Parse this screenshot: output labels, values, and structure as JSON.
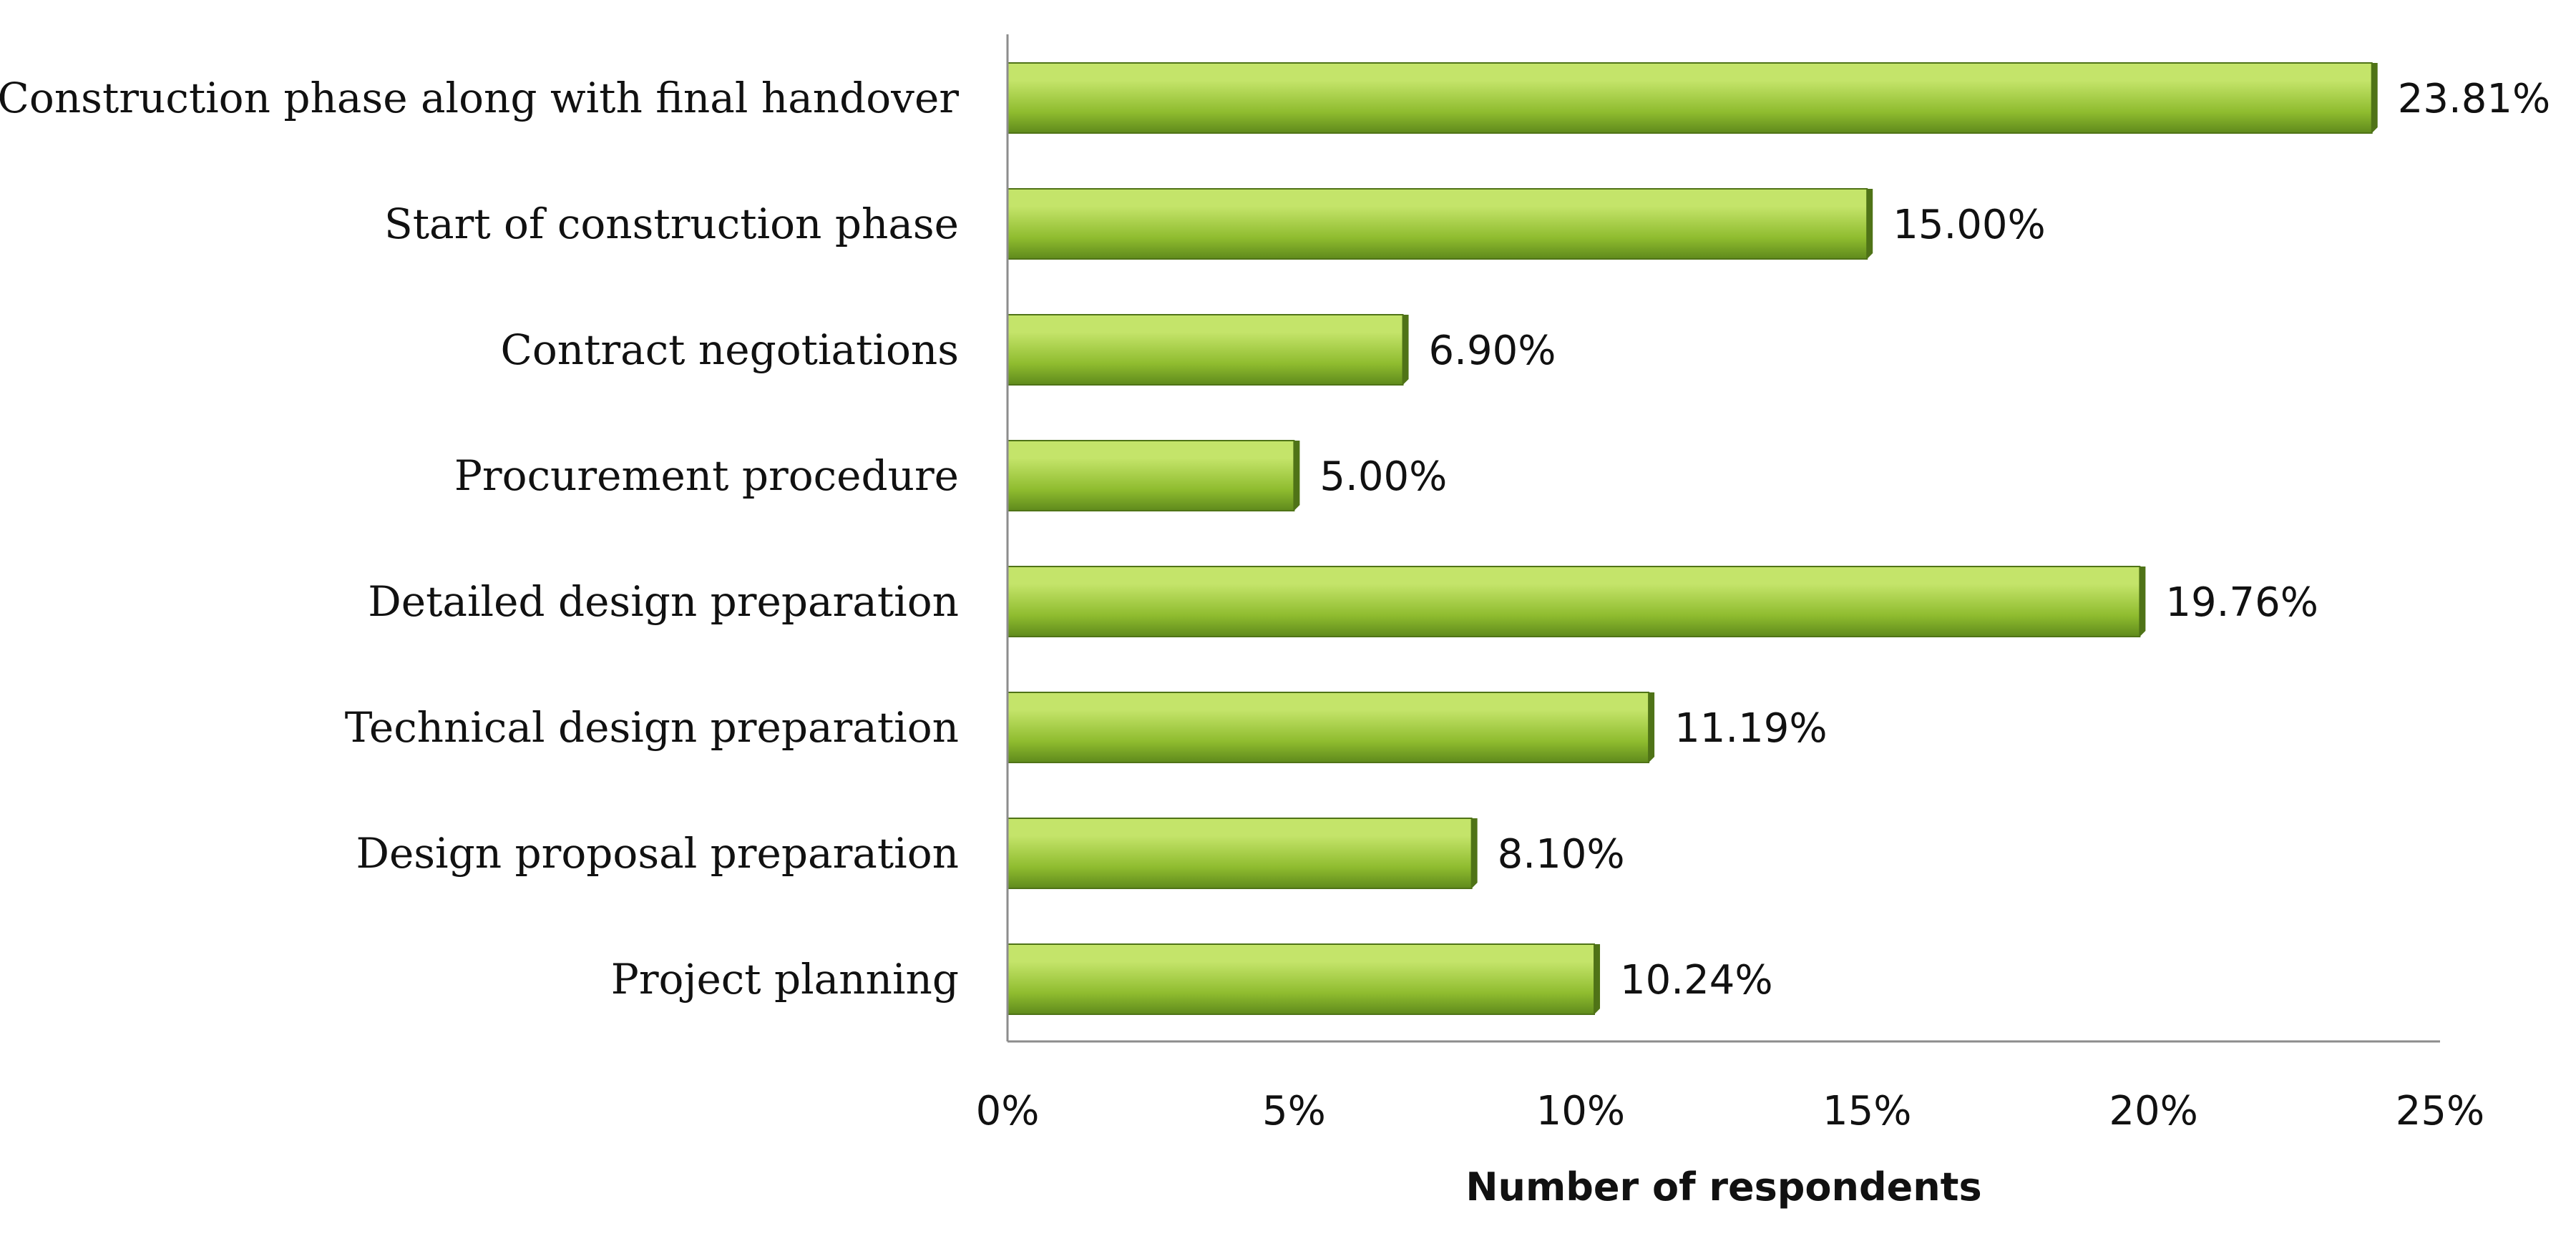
{
  "chart_data": {
    "type": "bar",
    "orientation": "horizontal",
    "title": "",
    "xlabel": "Number of respondents",
    "ylabel": "",
    "xlim": [
      0,
      25
    ],
    "x_ticks": [
      0,
      5,
      10,
      15,
      20,
      25
    ],
    "x_tick_labels": [
      "0%",
      "5%",
      "10%",
      "15%",
      "20%",
      "25%"
    ],
    "grid": false,
    "legend": "none",
    "categories": [
      "Construction phase along with final handover",
      "Start of construction phase",
      "Contract negotiations",
      "Procurement procedure",
      "Detailed design preparation",
      "Technical design preparation",
      "Design proposal preparation",
      "Project planning"
    ],
    "values": [
      23.81,
      15.0,
      6.9,
      5.0,
      19.76,
      11.19,
      8.1,
      10.24
    ],
    "value_labels": [
      "23.81%",
      "15.00%",
      "6.90%",
      "5.00%",
      "19.76%",
      "11.19%",
      "8.10%",
      "10.24%"
    ],
    "colors": {
      "bar_light": "#c4e46a",
      "bar_mid": "#8fbc2f",
      "bar_dark": "#5f8a1c",
      "bar_edge": "#4f7317",
      "axis": "#8c8c8c"
    }
  }
}
